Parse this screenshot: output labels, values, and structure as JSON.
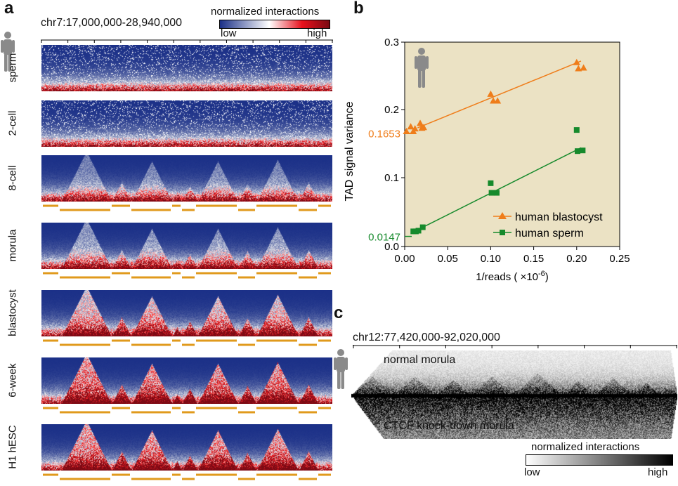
{
  "panel_a": {
    "letter": "a",
    "coordinates": "chr7:17,000,000-28,940,000",
    "legend": {
      "title": "normalized interactions",
      "low": "low",
      "high": "high",
      "colors": [
        "#1a2f87",
        "#ffffff",
        "#e8101c",
        "#7a0a12"
      ]
    },
    "rows": [
      {
        "label": "sperm",
        "tad_level": 0.0
      },
      {
        "label": "2-cell",
        "tad_level": 0.0
      },
      {
        "label": "8-cell",
        "tad_level": 0.35
      },
      {
        "label": "morula",
        "tad_level": 0.45
      },
      {
        "label": "blastocyst",
        "tad_level": 0.75
      },
      {
        "label": "6-week",
        "tad_level": 0.95
      },
      {
        "label": "H1 hESC",
        "tad_level": 0.9
      }
    ],
    "tad_bar_color": "#e09a1c"
  },
  "panel_b": {
    "letter": "b",
    "chart_data": {
      "type": "scatter",
      "xlabel": "1/reads ( ×10",
      "xlabel_exp": "-6",
      "xlabel_end": ")",
      "ylabel": "TAD signal variance",
      "xlim": [
        0,
        0.25
      ],
      "xticks": [
        "0.00",
        "0.05",
        "0.10",
        "0.15",
        "0.20",
        "0.25"
      ],
      "yticks": [
        {
          "label": "0.0",
          "value": 0.0
        },
        {
          "label": "0.1",
          "value": 0.1
        },
        {
          "label": "0.2",
          "value": 0.2
        },
        {
          "label": "0.3",
          "value": 0.3
        }
      ],
      "background": "#ebe2c4",
      "series": [
        {
          "name": "human blastocyst",
          "color": "#ef7d1a",
          "marker": "triangle",
          "intercept_label": "0.1653",
          "intercept": 0.1653,
          "slope": 0.52,
          "points": [
            [
              0.002,
              0.168
            ],
            [
              0.007,
              0.175
            ],
            [
              0.01,
              0.168
            ],
            [
              0.012,
              0.172
            ],
            [
              0.018,
              0.18
            ],
            [
              0.02,
              0.173
            ],
            [
              0.022,
              0.174
            ],
            [
              0.1,
              0.223
            ],
            [
              0.103,
              0.213
            ],
            [
              0.108,
              0.213
            ],
            [
              0.2,
              0.27
            ],
            [
              0.202,
              0.261
            ],
            [
              0.208,
              0.262
            ]
          ]
        },
        {
          "name": "human sperm",
          "color": "#168a2c",
          "marker": "square",
          "intercept_label": "0.0147",
          "intercept": 0.0147,
          "slope": 0.63,
          "points": [
            [
              0.01,
              0.022
            ],
            [
              0.013,
              0.022
            ],
            [
              0.016,
              0.023
            ],
            [
              0.021,
              0.028
            ],
            [
              0.1,
              0.092
            ],
            [
              0.101,
              0.078
            ],
            [
              0.107,
              0.078
            ],
            [
              0.2,
              0.17
            ],
            [
              0.201,
              0.139
            ],
            [
              0.207,
              0.14
            ]
          ]
        }
      ],
      "legend_position": "bottom-right"
    }
  },
  "panel_c": {
    "letter": "c",
    "coordinates": "chr12:77,420,000-92,020,000",
    "top_label": "normal morula",
    "bottom_label": "CTCF knock-down morula",
    "legend": {
      "title": "normalized interactions",
      "low": "low",
      "high": "high",
      "colors": [
        "#ffffff",
        "#000000"
      ]
    }
  },
  "icons": [
    "human-figure-icon"
  ]
}
